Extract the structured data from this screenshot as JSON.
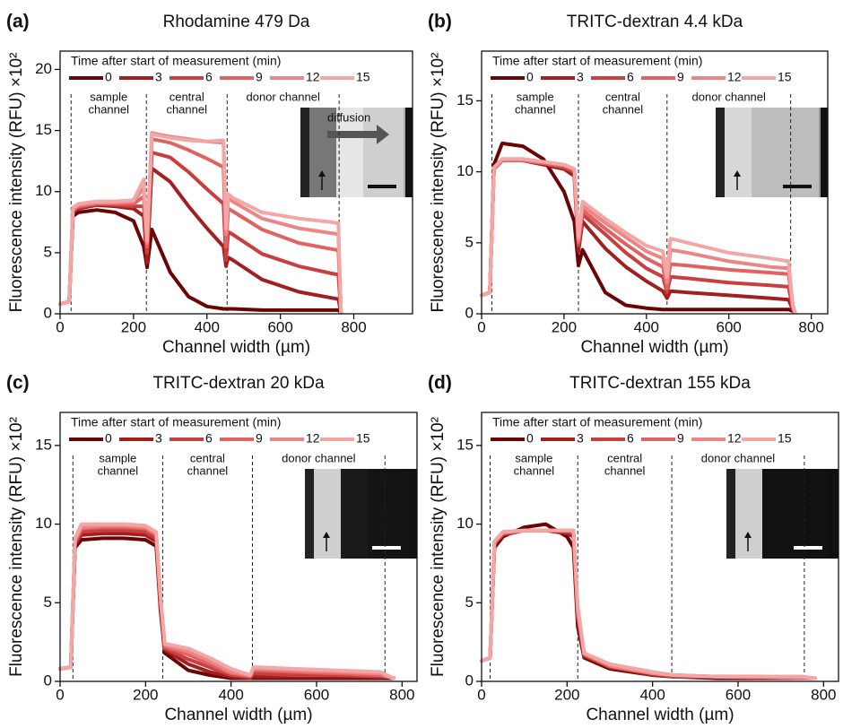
{
  "chart_data": [
    {
      "type": "line",
      "panel_label": "(a)",
      "title": "Rhodamine 479 Da",
      "xlabel": "Channel width (µm)",
      "ylabel": "Fluorescence intensity (RFU) ×10²",
      "legend_title": "Time after start of measurement (min)",
      "inset_label": "diffusion",
      "annotations": [
        [
          "sample",
          "channel"
        ],
        [
          "central",
          "channel"
        ],
        [
          "donor channel"
        ]
      ],
      "vlines": [
        30,
        235,
        455,
        760
      ],
      "xlim": [
        0,
        960
      ],
      "xticks": [
        0,
        200,
        400,
        600,
        800
      ],
      "ylim": [
        0,
        21.5
      ],
      "yticks": [
        0,
        5,
        10,
        15,
        20
      ],
      "x": [
        0,
        25,
        35,
        50,
        100,
        150,
        200,
        228,
        237,
        250,
        300,
        350,
        400,
        445,
        452,
        458,
        470,
        550,
        650,
        740,
        758,
        765
      ],
      "series": [
        {
          "name": "0",
          "color": "#6b0505",
          "values": [
            0.8,
            1.0,
            8.0,
            8.3,
            8.5,
            8.3,
            7.6,
            5.5,
            3.8,
            6.9,
            3.4,
            1.4,
            0.6,
            0.4,
            0.4,
            0.4,
            0.4,
            0.3,
            0.3,
            0.3,
            0.3,
            0.1
          ]
        },
        {
          "name": "3",
          "color": "#a31f1f",
          "values": [
            0.8,
            1.0,
            8.3,
            8.6,
            8.9,
            8.8,
            8.6,
            8.0,
            4.2,
            11.9,
            10.8,
            8.8,
            7.0,
            5.5,
            3.9,
            4.6,
            4.4,
            2.8,
            1.8,
            1.3,
            1.2,
            0.1
          ]
        },
        {
          "name": "6",
          "color": "#c93f3f",
          "values": [
            0.8,
            1.0,
            8.4,
            8.7,
            9.0,
            8.9,
            8.8,
            8.8,
            5.0,
            13.2,
            12.8,
            11.6,
            10.2,
            9.0,
            4.4,
            6.7,
            6.5,
            4.9,
            3.9,
            3.3,
            3.2,
            0.1
          ]
        },
        {
          "name": "9",
          "color": "#e06363",
          "values": [
            0.8,
            1.0,
            8.5,
            8.8,
            9.0,
            9.0,
            9.0,
            9.6,
            5.5,
            14.3,
            14.0,
            13.4,
            12.7,
            12.0,
            5.5,
            8.6,
            8.4,
            6.9,
            5.8,
            5.3,
            5.2,
            0.1
          ]
        },
        {
          "name": "12",
          "color": "#ec8585",
          "values": [
            0.8,
            1.0,
            8.6,
            8.9,
            9.1,
            9.1,
            9.2,
            10.3,
            5.8,
            14.8,
            14.5,
            14.3,
            14.1,
            14.0,
            6.5,
            9.5,
            9.2,
            7.8,
            7.0,
            6.6,
            6.5,
            0.1
          ]
        },
        {
          "name": "15",
          "color": "#f2a6a6",
          "values": [
            0.8,
            1.0,
            8.7,
            9.0,
            9.2,
            9.2,
            9.3,
            11.0,
            6.0,
            14.7,
            14.4,
            14.2,
            14.1,
            14.2,
            7.0,
            9.8,
            9.5,
            8.3,
            7.8,
            7.5,
            7.4,
            0.1
          ]
        }
      ]
    },
    {
      "type": "line",
      "panel_label": "(b)",
      "title": "TRITC-dextran 4.4 kDa",
      "xlabel": "Channel width (µm)",
      "ylabel": "Fluorescence intensity (RFU) ×10²",
      "legend_title": "Time after start of measurement (min)",
      "annotations": [
        [
          "sample",
          "channel"
        ],
        [
          "central",
          "channel"
        ],
        [
          "donor channel"
        ]
      ],
      "vlines": [
        25,
        235,
        450,
        750
      ],
      "xlim": [
        0,
        840
      ],
      "xticks": [
        0,
        200,
        400,
        600,
        800
      ],
      "ylim": [
        0,
        18.5
      ],
      "yticks": [
        0,
        5,
        10,
        15
      ],
      "x": [
        0,
        20,
        30,
        50,
        100,
        150,
        200,
        225,
        235,
        245,
        300,
        350,
        400,
        440,
        450,
        458,
        500,
        600,
        700,
        745,
        755,
        760
      ],
      "series": [
        {
          "name": "0",
          "color": "#6b0505",
          "values": [
            1.3,
            1.5,
            10.5,
            12.0,
            11.8,
            10.9,
            8.6,
            6.5,
            3.4,
            4.5,
            1.5,
            0.6,
            0.4,
            0.3,
            0.3,
            0.3,
            0.3,
            0.3,
            0.3,
            0.3,
            0.2,
            0.1
          ]
        },
        {
          "name": "3",
          "color": "#a31f1f",
          "values": [
            1.3,
            1.5,
            10.2,
            10.8,
            10.8,
            10.5,
            10.2,
            9.7,
            4.4,
            6.5,
            4.6,
            3.3,
            2.3,
            1.6,
            1.1,
            1.6,
            1.5,
            1.3,
            1.1,
            1.0,
            0.3,
            0.1
          ]
        },
        {
          "name": "6",
          "color": "#c93f3f",
          "values": [
            1.3,
            1.5,
            10.2,
            10.8,
            10.8,
            10.6,
            10.3,
            10.0,
            4.8,
            7.0,
            5.6,
            4.3,
            3.2,
            2.6,
            1.5,
            2.6,
            2.5,
            2.2,
            2.0,
            1.9,
            0.4,
            0.1
          ]
        },
        {
          "name": "9",
          "color": "#e06363",
          "values": [
            1.3,
            1.5,
            10.2,
            10.8,
            10.8,
            10.6,
            10.4,
            10.1,
            5.0,
            7.3,
            6.0,
            4.9,
            3.9,
            3.3,
            1.8,
            3.5,
            3.4,
            3.1,
            2.9,
            2.8,
            0.5,
            0.1
          ]
        },
        {
          "name": "12",
          "color": "#ec8585",
          "values": [
            1.3,
            1.5,
            10.3,
            10.9,
            10.9,
            10.7,
            10.5,
            10.2,
            5.2,
            7.6,
            6.4,
            5.4,
            4.4,
            3.9,
            2.2,
            4.5,
            4.3,
            3.7,
            3.3,
            3.2,
            0.6,
            0.1
          ]
        },
        {
          "name": "15",
          "color": "#f2a6a6",
          "values": [
            1.3,
            1.5,
            10.3,
            10.9,
            10.9,
            10.7,
            10.5,
            10.2,
            5.4,
            7.9,
            6.7,
            5.7,
            4.8,
            4.4,
            2.6,
            5.3,
            5.0,
            4.3,
            3.9,
            3.7,
            0.7,
            0.1
          ]
        }
      ]
    },
    {
      "type": "line",
      "panel_label": "(c)",
      "title": "TRITC-dextran 20 kDa",
      "xlabel": "Channel width (µm)",
      "ylabel": "Fluorescence intensity (RFU) ×10²",
      "legend_title": "Time after start of measurement (min)",
      "annotations": [
        [
          "sample",
          "channel"
        ],
        [
          "central",
          "channel"
        ],
        [
          "donor channel"
        ]
      ],
      "vlines": [
        30,
        240,
        450,
        760
      ],
      "xlim": [
        0,
        835
      ],
      "xticks": [
        0,
        200,
        400,
        600,
        800
      ],
      "ylim": [
        0,
        17.1
      ],
      "yticks": [
        0,
        5,
        10,
        15
      ],
      "x": [
        0,
        25,
        35,
        50,
        100,
        150,
        200,
        225,
        235,
        245,
        300,
        350,
        400,
        445,
        452,
        465,
        550,
        650,
        750,
        765,
        780
      ],
      "series": [
        {
          "name": "0",
          "color": "#6b0505",
          "values": [
            0.8,
            0.9,
            8.5,
            9.0,
            9.1,
            9.1,
            9.0,
            8.6,
            4.5,
            1.8,
            0.7,
            0.4,
            0.2,
            0.2,
            0.2,
            0.2,
            0.2,
            0.2,
            0.2,
            0.2,
            0.2
          ]
        },
        {
          "name": "3",
          "color": "#a31f1f",
          "values": [
            0.8,
            0.9,
            8.7,
            9.3,
            9.4,
            9.4,
            9.3,
            8.9,
            4.8,
            2.0,
            1.1,
            0.6,
            0.3,
            0.2,
            0.3,
            0.3,
            0.3,
            0.3,
            0.3,
            0.3,
            0.2
          ]
        },
        {
          "name": "6",
          "color": "#c93f3f",
          "values": [
            0.8,
            0.9,
            8.8,
            9.5,
            9.6,
            9.6,
            9.5,
            9.1,
            5.0,
            2.1,
            1.4,
            0.9,
            0.4,
            0.3,
            0.5,
            0.5,
            0.4,
            0.4,
            0.3,
            0.3,
            0.2
          ]
        },
        {
          "name": "9",
          "color": "#e06363",
          "values": [
            0.8,
            0.9,
            8.9,
            9.7,
            9.8,
            9.8,
            9.7,
            9.3,
            5.2,
            2.2,
            1.7,
            1.1,
            0.5,
            0.3,
            0.7,
            0.7,
            0.6,
            0.5,
            0.4,
            0.3,
            0.2
          ]
        },
        {
          "name": "12",
          "color": "#ec8585",
          "values": [
            0.8,
            0.9,
            9.0,
            9.8,
            9.9,
            9.9,
            9.8,
            9.4,
            5.3,
            2.3,
            1.9,
            1.3,
            0.6,
            0.4,
            0.8,
            0.8,
            0.7,
            0.6,
            0.5,
            0.3,
            0.2
          ]
        },
        {
          "name": "15",
          "color": "#f2a6a6",
          "values": [
            0.8,
            0.9,
            9.1,
            10.0,
            10.0,
            10.0,
            9.9,
            9.5,
            5.4,
            2.4,
            2.1,
            1.5,
            0.8,
            0.4,
            0.9,
            0.9,
            0.8,
            0.7,
            0.6,
            0.4,
            0.2
          ]
        }
      ]
    },
    {
      "type": "line",
      "panel_label": "(d)",
      "title": "TRITC-dextran 155 kDa",
      "xlabel": "Channel width (µm)",
      "ylabel": "Fluorescence intensity (RFU) ×10²",
      "legend_title": "Time after start of measurement (min)",
      "annotations": [
        [
          "sample",
          "channel"
        ],
        [
          "central",
          "channel"
        ],
        [
          "donor channel"
        ]
      ],
      "vlines": [
        20,
        225,
        445,
        755
      ],
      "xlim": [
        0,
        835
      ],
      "xticks": [
        0,
        200,
        400,
        600,
        800
      ],
      "ylim": [
        0,
        17.1
      ],
      "yticks": [
        0,
        5,
        10,
        15
      ],
      "x": [
        0,
        20,
        30,
        50,
        100,
        150,
        200,
        215,
        225,
        240,
        300,
        400,
        450,
        550,
        650,
        750,
        780
      ],
      "series": [
        {
          "name": "0",
          "color": "#6b0505",
          "values": [
            1.3,
            1.5,
            8.5,
            9.2,
            9.8,
            10.0,
            9.2,
            8.5,
            3.5,
            1.5,
            0.8,
            0.4,
            0.3,
            0.2,
            0.2,
            0.2,
            0.2
          ]
        },
        {
          "name": "3",
          "color": "#a31f1f",
          "values": [
            1.3,
            1.5,
            8.7,
            9.3,
            9.6,
            9.6,
            9.4,
            9.2,
            4.0,
            1.6,
            0.9,
            0.4,
            0.3,
            0.3,
            0.2,
            0.2,
            0.2
          ]
        },
        {
          "name": "6",
          "color": "#c93f3f",
          "values": [
            1.3,
            1.5,
            8.8,
            9.4,
            9.6,
            9.6,
            9.5,
            9.4,
            4.2,
            1.7,
            0.9,
            0.5,
            0.3,
            0.3,
            0.3,
            0.2,
            0.2
          ]
        },
        {
          "name": "9",
          "color": "#e06363",
          "values": [
            1.3,
            1.5,
            8.8,
            9.4,
            9.6,
            9.6,
            9.6,
            9.5,
            4.4,
            1.7,
            1.0,
            0.5,
            0.4,
            0.3,
            0.3,
            0.2,
            0.2
          ]
        },
        {
          "name": "12",
          "color": "#ec8585",
          "values": [
            1.3,
            1.5,
            8.9,
            9.5,
            9.6,
            9.6,
            9.6,
            9.6,
            4.6,
            1.8,
            1.0,
            0.5,
            0.4,
            0.3,
            0.3,
            0.3,
            0.2
          ]
        },
        {
          "name": "15",
          "color": "#f2a6a6",
          "values": [
            1.3,
            1.5,
            8.9,
            9.5,
            9.6,
            9.6,
            9.6,
            9.6,
            4.8,
            1.8,
            1.1,
            0.6,
            0.4,
            0.3,
            0.3,
            0.3,
            0.2
          ]
        }
      ]
    }
  ]
}
